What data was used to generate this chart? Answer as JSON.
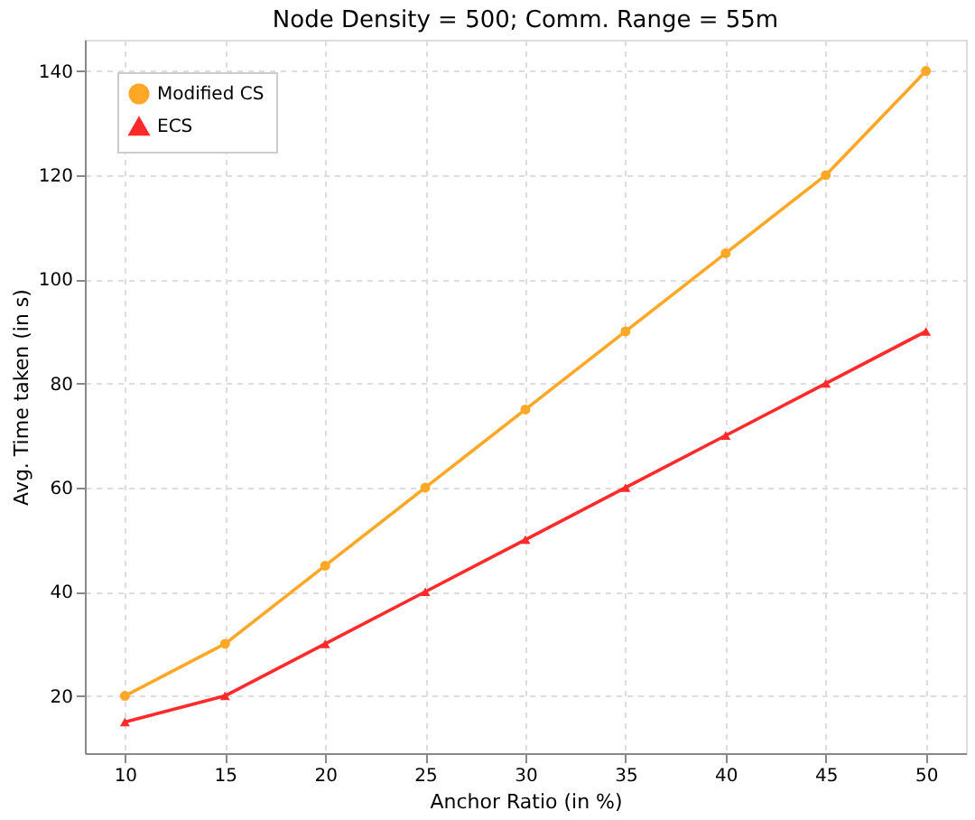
{
  "chart_data": {
    "type": "line",
    "title": "Node Density = 500; Comm. Range = 55m",
    "xlabel": "Anchor Ratio (in %)",
    "ylabel": "Avg. Time taken (in s)",
    "x": [
      10,
      15,
      20,
      25,
      30,
      35,
      40,
      45,
      50
    ],
    "series": [
      {
        "name": "Modified CS",
        "color": "#ffa726",
        "marker": "circle",
        "values": [
          20,
          30,
          45,
          60,
          75,
          90,
          105,
          120,
          140
        ]
      },
      {
        "name": "ECS",
        "color": "#ff2a2a",
        "marker": "triangle",
        "values": [
          15,
          20,
          30,
          40,
          50,
          60,
          70,
          80,
          90
        ]
      }
    ],
    "xlim": [
      8,
      52
    ],
    "xticks": [
      10,
      15,
      20,
      25,
      30,
      35,
      40,
      45,
      50
    ],
    "ylim": [
      9,
      146
    ],
    "yticks": [
      20,
      40,
      60,
      80,
      100,
      120,
      140
    ],
    "grid": true,
    "legend": "top left",
    "line_style": "solid"
  }
}
